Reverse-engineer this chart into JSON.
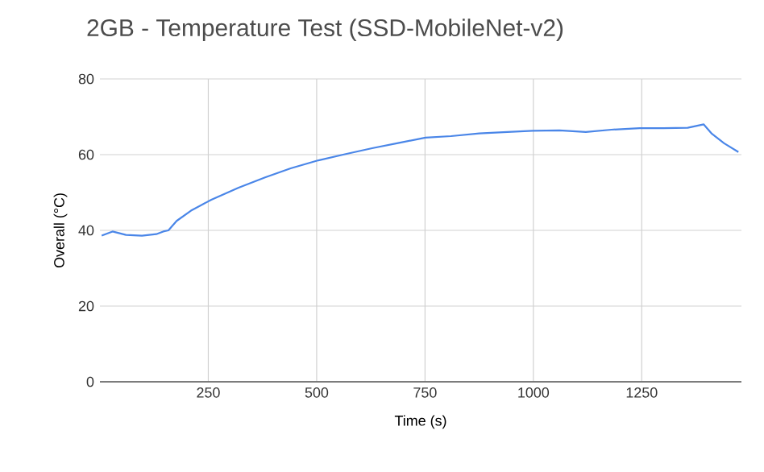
{
  "chart_data": {
    "type": "line",
    "title": "2GB - Temperature Test (SSD-MobileNet-v2)",
    "xlabel": "Time (s)",
    "ylabel": "Overall (°C)",
    "x": [
      4,
      29,
      60,
      97,
      130,
      146,
      158,
      177,
      210,
      257,
      320,
      381,
      440,
      504,
      565,
      628,
      690,
      751,
      810,
      875,
      940,
      998,
      1060,
      1121,
      1180,
      1245,
      1300,
      1356,
      1393,
      1412,
      1440,
      1473
    ],
    "series": [
      {
        "color": "#4a86e8",
        "values": [
          38.6,
          39.7,
          38.8,
          38.6,
          39.0,
          39.7,
          40.0,
          42.5,
          45.2,
          48.1,
          51.3,
          54.0,
          56.4,
          58.5,
          60.1,
          61.7,
          63.1,
          64.5,
          64.9,
          65.6,
          66.0,
          66.3,
          66.4,
          66.0,
          66.6,
          67.0,
          67.0,
          67.1,
          68.0,
          65.5,
          63.0,
          60.7
        ]
      }
    ],
    "xlim": [
      0,
      1480
    ],
    "ylim": [
      0,
      80
    ],
    "xticks": [
      250,
      500,
      750,
      1000,
      1250
    ],
    "yticks": [
      0,
      20,
      40,
      60,
      80
    ],
    "grid": true,
    "line_style": "solid",
    "marker": "none"
  }
}
